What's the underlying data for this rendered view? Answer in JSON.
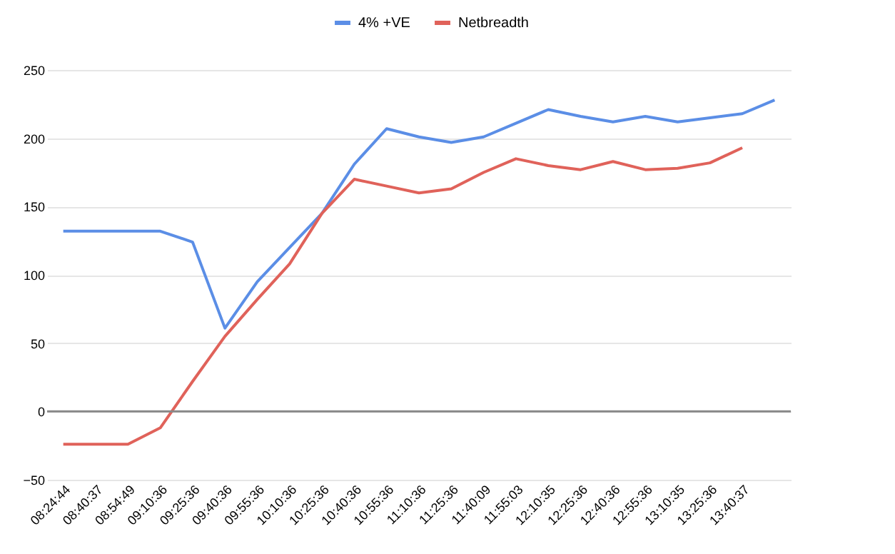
{
  "chart_data": {
    "type": "line",
    "categories": [
      "08:24:44",
      "08:40:37",
      "08:54:49",
      "09:10:36",
      "09:25:36",
      "09:40:36",
      "09:55:36",
      "10:10:36",
      "10:25:36",
      "10:40:36",
      "10:55:36",
      "11:10:36",
      "11:25:36",
      "11:40:09",
      "11:55:03",
      "12:10:35",
      "12:25:36",
      "12:40:36",
      "12:55:36",
      "13:10:35",
      "13:25:36",
      "13:40:37",
      null
    ],
    "series": [
      {
        "name": "4% +VE",
        "color": "#5b8ee6",
        "values": [
          132,
          132,
          132,
          132,
          124,
          61,
          95,
          120,
          145,
          181,
          207,
          201,
          197,
          201,
          211,
          221,
          216,
          212,
          216,
          212,
          215,
          218,
          228
        ]
      },
      {
        "name": "Netbreadth",
        "color": "#e0625a",
        "values": [
          -24,
          -24,
          -24,
          -12,
          22,
          55,
          82,
          108,
          145,
          170,
          165,
          160,
          163,
          175,
          185,
          180,
          177,
          183,
          177,
          178,
          182,
          193,
          null
        ]
      }
    ],
    "ylim": [
      -50,
      250
    ],
    "yticks": [
      -50,
      0,
      50,
      100,
      150,
      200,
      250
    ],
    "grid": "y",
    "legend": "top",
    "marker": "none",
    "line_style": "solid",
    "ref_lines": [
      {
        "axis": "y",
        "value": 0,
        "color": "#888888"
      }
    ]
  }
}
